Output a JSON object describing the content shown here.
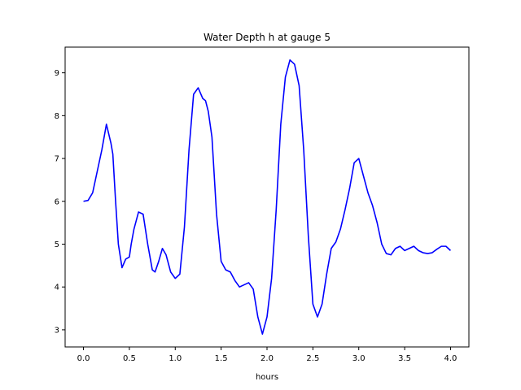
{
  "chart_data": {
    "type": "line",
    "title": "Water Depth h at gauge 5",
    "xlabel": "hours",
    "ylabel": "",
    "xlim": [
      -0.2,
      4.2
    ],
    "ylim": [
      2.6,
      9.6
    ],
    "xticks": [
      0.0,
      0.5,
      1.0,
      1.5,
      2.0,
      2.5,
      3.0,
      3.5,
      4.0
    ],
    "xtick_labels": [
      "0.0",
      "0.5",
      "1.0",
      "1.5",
      "2.0",
      "2.5",
      "3.0",
      "3.5",
      "4.0"
    ],
    "yticks": [
      3,
      4,
      5,
      6,
      7,
      8,
      9
    ],
    "ytick_labels": [
      "3",
      "4",
      "5",
      "6",
      "7",
      "8",
      "9"
    ],
    "grid": false,
    "series": [
      {
        "color": "#0000ff",
        "x": [
          0.0,
          0.05,
          0.1,
          0.15,
          0.2,
          0.25,
          0.3,
          0.32,
          0.35,
          0.38,
          0.42,
          0.46,
          0.5,
          0.52,
          0.55,
          0.6,
          0.65,
          0.7,
          0.75,
          0.78,
          0.82,
          0.86,
          0.9,
          0.95,
          1.0,
          1.05,
          1.1,
          1.15,
          1.2,
          1.25,
          1.3,
          1.33,
          1.36,
          1.4,
          1.45,
          1.5,
          1.55,
          1.6,
          1.65,
          1.7,
          1.75,
          1.8,
          1.85,
          1.9,
          1.95,
          2.0,
          2.05,
          2.1,
          2.15,
          2.2,
          2.25,
          2.3,
          2.35,
          2.4,
          2.45,
          2.5,
          2.55,
          2.6,
          2.65,
          2.7,
          2.75,
          2.8,
          2.85,
          2.9,
          2.95,
          3.0,
          3.05,
          3.1,
          3.15,
          3.2,
          3.25,
          3.3,
          3.35,
          3.4,
          3.45,
          3.5,
          3.55,
          3.6,
          3.65,
          3.7,
          3.75,
          3.8,
          3.85,
          3.9,
          3.95,
          4.0
        ],
        "y": [
          6.0,
          6.02,
          6.2,
          6.7,
          7.2,
          7.8,
          7.35,
          7.1,
          6.0,
          5.0,
          4.45,
          4.65,
          4.7,
          5.0,
          5.35,
          5.75,
          5.7,
          5.0,
          4.4,
          4.35,
          4.6,
          4.9,
          4.75,
          4.35,
          4.2,
          4.3,
          5.4,
          7.2,
          8.5,
          8.65,
          8.4,
          8.35,
          8.1,
          7.5,
          5.7,
          4.6,
          4.4,
          4.35,
          4.15,
          4.0,
          4.05,
          4.1,
          3.95,
          3.3,
          2.9,
          3.3,
          4.2,
          5.8,
          7.8,
          8.9,
          9.3,
          9.2,
          8.7,
          7.2,
          5.2,
          3.6,
          3.3,
          3.6,
          4.3,
          4.9,
          5.05,
          5.35,
          5.8,
          6.3,
          6.9,
          7.0,
          6.6,
          6.2,
          5.9,
          5.5,
          5.0,
          4.78,
          4.75,
          4.9,
          4.95,
          4.85,
          4.9,
          4.95,
          4.85,
          4.8,
          4.78,
          4.8,
          4.88,
          4.95,
          4.95,
          4.85
        ]
      }
    ]
  }
}
